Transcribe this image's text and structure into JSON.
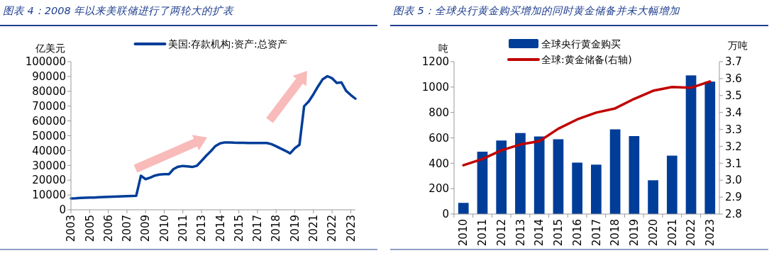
{
  "chart_data": [
    {
      "type": "line",
      "title": "图表 4：2008 年以来美联储进行了两轮大的扩表",
      "ylabel": "亿美元",
      "legend": "top",
      "ylim": [
        0,
        100000
      ],
      "categories": [
        "2003",
        null,
        null,
        null,
        "2005",
        null,
        null,
        null,
        "2006",
        null,
        null,
        null,
        "2007",
        null,
        null,
        null,
        "2009",
        null,
        null,
        null,
        "2010",
        null,
        null,
        null,
        "2011",
        null,
        null,
        null,
        "2013",
        null,
        null,
        null,
        "2014",
        null,
        null,
        null,
        "2015",
        null,
        null,
        null,
        "2017",
        null,
        null,
        null,
        "2018",
        null,
        null,
        null,
        "2019",
        null,
        null,
        null,
        "2021",
        null,
        null,
        null,
        "2022",
        null,
        null,
        null,
        "2023",
        null
      ],
      "yticks": [
        0,
        10000,
        20000,
        30000,
        40000,
        50000,
        60000,
        70000,
        80000,
        90000,
        100000
      ],
      "series": [
        {
          "name": "美国:存款机构:资产:总资产",
          "color": "#003d99",
          "values": [
            7700,
            7800,
            8000,
            8100,
            8200,
            8300,
            8450,
            8600,
            8700,
            8850,
            8950,
            9100,
            9200,
            9350,
            9500,
            23000,
            20700,
            21700,
            23100,
            23800,
            24000,
            24000,
            27500,
            29100,
            29600,
            29300,
            28900,
            29700,
            33000,
            36500,
            39600,
            43100,
            44900,
            45500,
            45500,
            45300,
            45200,
            45200,
            45100,
            45100,
            45100,
            45100,
            45100,
            44300,
            42900,
            41300,
            39800,
            38100,
            41600,
            43900,
            69900,
            73200,
            78000,
            83400,
            88200,
            90200,
            88800,
            85600,
            86000,
            80300,
            77500,
            75000
          ]
        }
      ]
    },
    {
      "type": "bar",
      "title": "图表 5：全球央行黄金购买增加的同时黄金储备并未大幅增加",
      "ylabel": "吨",
      "y2label": "万吨",
      "legend": "top",
      "categories": [
        "2010",
        "2011",
        "2012",
        "2013",
        "2014",
        "2015",
        "2016",
        "2017",
        "2018",
        "2019",
        "2020",
        "2021",
        "2022",
        "2023"
      ],
      "ylim": [
        0,
        1200
      ],
      "yticks": [
        0,
        200,
        400,
        600,
        800,
        1000,
        1200
      ],
      "y2lim": [
        2.8,
        3.7
      ],
      "y2ticks": [
        {
          "value": 2.8,
          "label": "2.8"
        },
        {
          "value": 2.9,
          "label": "2.9"
        },
        {
          "value": 3.0,
          "label": "3.0"
        },
        {
          "value": 3.1,
          "label": "3.1"
        },
        {
          "value": 3.2,
          "label": "3.2"
        },
        {
          "value": 3.3,
          "label": "3.3"
        },
        {
          "value": 3.4,
          "label": "3.4"
        },
        {
          "value": 3.5,
          "label": "3.5"
        },
        {
          "value": 3.6,
          "label": "3.6"
        },
        {
          "value": 3.7,
          "label": "3.7"
        }
      ],
      "series": [
        {
          "name": "全球央行黄金购买",
          "color": "#003d99",
          "values": [
            88,
            491,
            579,
            638,
            611,
            589,
            405,
            389,
            667,
            614,
            266,
            460,
            1092,
            1043
          ]
        },
        {
          "name": "全球:黄金储备(右轴)",
          "type": "line",
          "axis": "y2",
          "color": "#c00000",
          "values": [
            3.088,
            3.125,
            3.176,
            3.211,
            3.23,
            3.304,
            3.359,
            3.399,
            3.424,
            3.48,
            3.528,
            3.55,
            3.546,
            3.583
          ]
        }
      ]
    }
  ]
}
